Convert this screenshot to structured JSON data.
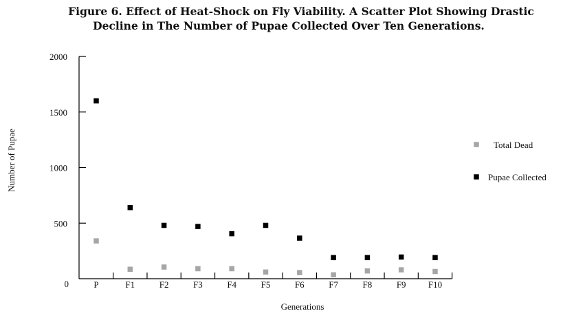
{
  "chart_data": {
    "type": "scatter",
    "title_lines": [
      "Figure 6. Effect of Heat-Shock on Fly Viability. A Scatter Plot Showing Drastic",
      "Decline in The Number of Pupae Collected Over Ten Generations."
    ],
    "xlabel": "Generations",
    "ylabel": "Number of Pupae",
    "categories": [
      "P",
      "F1",
      "F2",
      "F3",
      "F4",
      "F5",
      "F6",
      "F7",
      "F8",
      "F9",
      "F10"
    ],
    "y_ticks": [
      "0",
      "500",
      "1000",
      "1500",
      "2000"
    ],
    "y_tick_values": [
      0,
      500,
      1000,
      1500,
      2000
    ],
    "ylim": [
      0,
      2000
    ],
    "grid": false,
    "legend_position": "right",
    "series": [
      {
        "name": "Total Dead",
        "color": "#a6a6a6",
        "values": [
          340,
          85,
          105,
          90,
          90,
          60,
          55,
          35,
          70,
          80,
          65
        ]
      },
      {
        "name": "Pupae Collected",
        "color": "#000000",
        "values": [
          1600,
          640,
          480,
          470,
          405,
          480,
          365,
          190,
          190,
          195,
          190
        ]
      }
    ]
  }
}
